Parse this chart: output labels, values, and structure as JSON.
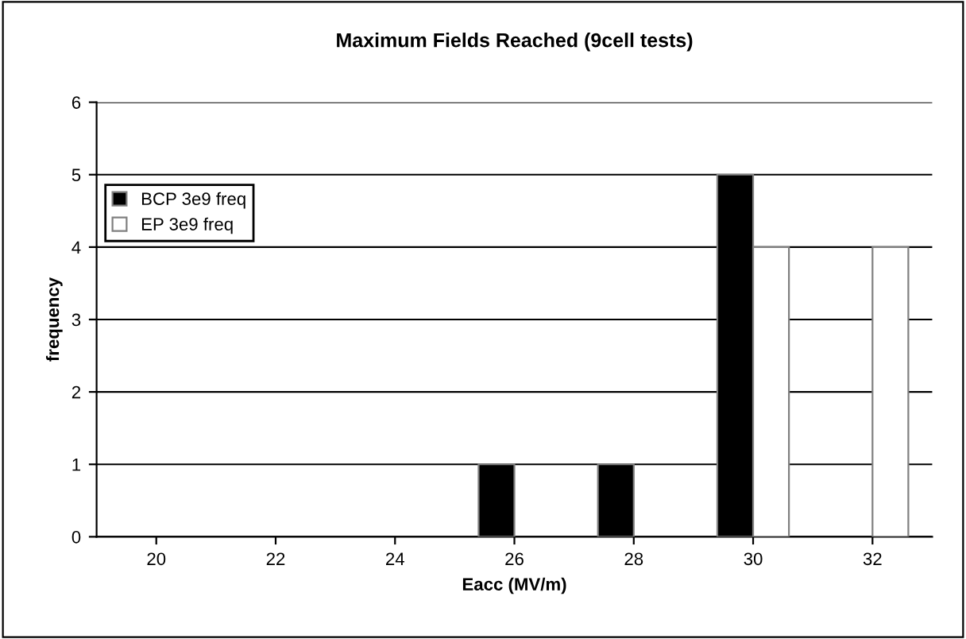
{
  "chart_data": {
    "type": "bar",
    "title": "Maximum Fields Reached (9cell tests)",
    "xlabel": "Eacc (MV/m)",
    "ylabel": "frequency",
    "categories": [
      "20",
      "22",
      "24",
      "26",
      "28",
      "30",
      "32"
    ],
    "series": [
      {
        "name": "BCP 3e9 freq",
        "color": "#000000",
        "values": [
          0,
          0,
          0,
          1,
          1,
          5,
          0
        ]
      },
      {
        "name": "EP 3e9 freq",
        "color": "#ffffff",
        "values": [
          0,
          0,
          0,
          0,
          0,
          4,
          4
        ]
      }
    ],
    "ylim": [
      0,
      6
    ],
    "yticks": [
      0,
      1,
      2,
      3,
      4,
      5,
      6
    ],
    "grid": "y",
    "legend": "top left"
  }
}
